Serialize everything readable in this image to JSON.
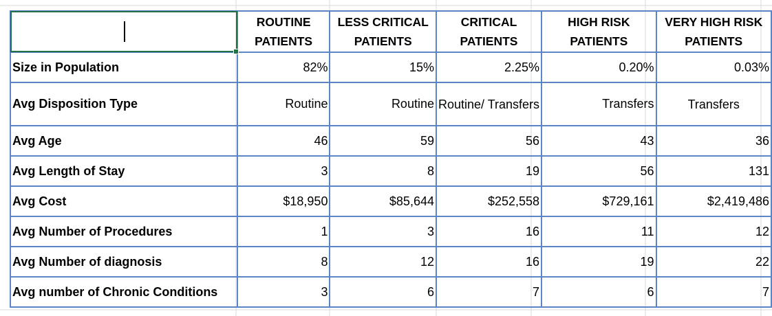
{
  "table": {
    "headers": [
      "",
      "ROUTINE PATIENTS",
      "LESS CRITICAL PATIENTS",
      "CRITICAL PATIENTS",
      "HIGH RISK PATIENTS",
      "VERY HIGH RISK PATIENTS"
    ],
    "rows": [
      {
        "label": "Size in Population",
        "values": [
          "82%",
          "15%",
          "2.25%",
          "0.20%",
          "0.03%"
        ]
      },
      {
        "label": "Avg Disposition Type",
        "values": [
          "Routine",
          "Routine",
          "Routine/ Transfers",
          "Transfers",
          "Transfers"
        ]
      },
      {
        "label": "Avg Age",
        "values": [
          "46",
          "59",
          "56",
          "43",
          "36"
        ]
      },
      {
        "label": "Avg Length of Stay",
        "values": [
          "3",
          "8",
          "19",
          "56",
          "131"
        ]
      },
      {
        "label": "Avg Cost",
        "values": [
          "$18,950",
          "$85,644",
          "$252,558",
          "$729,161",
          "$2,419,486"
        ]
      },
      {
        "label": "Avg Number of Procedures",
        "values": [
          "1",
          "3",
          "16",
          "11",
          "12"
        ]
      },
      {
        "label": "Avg Number of diagnosis",
        "values": [
          "8",
          "12",
          "16",
          "19",
          "22"
        ]
      },
      {
        "label": "Avg number of Chronic Conditions",
        "values": [
          "3",
          "6",
          "7",
          "6",
          "7"
        ]
      }
    ]
  },
  "colors": {
    "border": "#5b86c5",
    "selection": "#217346",
    "gridline": "#d4d4d4"
  }
}
